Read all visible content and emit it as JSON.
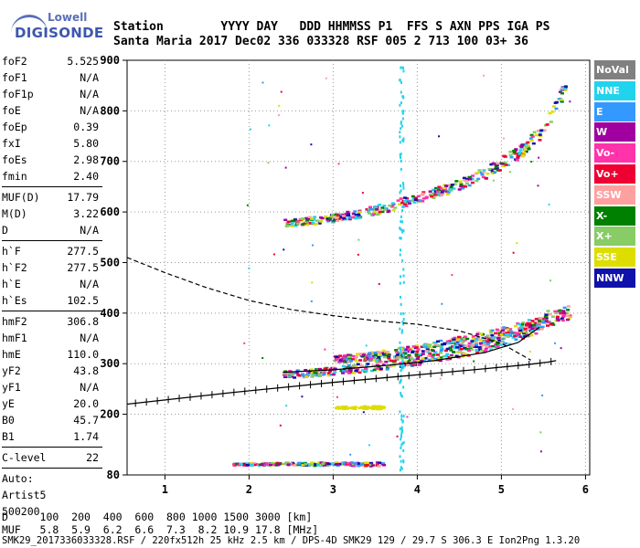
{
  "logo": {
    "brand_top": "Lowell",
    "brand_bottom": "DIGISONDE"
  },
  "header": {
    "labels_line": "Station        YYYY DAY   DDD HHMMSS P1  FFS S AXN PPS IGA PS",
    "values_line": "Santa Maria 2017 Dec02 336 033328 RSF 005 2 713 100 03+ 36"
  },
  "params": {
    "group1": [
      {
        "k": "foF2",
        "v": "5.525"
      },
      {
        "k": "foF1",
        "v": "N/A"
      },
      {
        "k": "foF1p",
        "v": "N/A"
      },
      {
        "k": "foE",
        "v": "N/A"
      },
      {
        "k": "foEp",
        "v": "0.39"
      },
      {
        "k": "fxI",
        "v": "5.80"
      },
      {
        "k": "foEs",
        "v": "2.98"
      },
      {
        "k": "fmin",
        "v": "2.40"
      }
    ],
    "group2": [
      {
        "k": "MUF(D)",
        "v": "17.79"
      },
      {
        "k": "M(D)",
        "v": "3.22"
      },
      {
        "k": "D",
        "v": "N/A"
      }
    ],
    "group3": [
      {
        "k": "h`F",
        "v": "277.5"
      },
      {
        "k": "h`F2",
        "v": "277.5"
      },
      {
        "k": "h`E",
        "v": "N/A"
      },
      {
        "k": "h`Es",
        "v": "102.5"
      }
    ],
    "group4": [
      {
        "k": "hmF2",
        "v": "306.8"
      },
      {
        "k": "hmF1",
        "v": "N/A"
      },
      {
        "k": "hmE",
        "v": "110.0"
      },
      {
        "k": "yF2",
        "v": "43.8"
      },
      {
        "k": "yF1",
        "v": "N/A"
      },
      {
        "k": "yE",
        "v": "20.0"
      },
      {
        "k": "B0",
        "v": "45.7"
      },
      {
        "k": "B1",
        "v": "1.74"
      }
    ],
    "group5": [
      {
        "k": "C-level",
        "v": "22"
      }
    ],
    "auto_lines": [
      "Auto:",
      "Artist5",
      "500200"
    ]
  },
  "legend": [
    {
      "label": "NoVal",
      "color": "#808080"
    },
    {
      "label": "NNE",
      "color": "#22d3ee"
    },
    {
      "label": "E",
      "color": "#3399ff"
    },
    {
      "label": "W",
      "color": "#a000a0"
    },
    {
      "label": "Vo-",
      "color": "#ff33aa"
    },
    {
      "label": "Vo+",
      "color": "#ee0033"
    },
    {
      "label": "SSW",
      "color": "#ffa0a0"
    },
    {
      "label": "X-",
      "color": "#008000"
    },
    {
      "label": "X+",
      "color": "#88cc66"
    },
    {
      "label": "SSE",
      "color": "#dddd00"
    },
    {
      "label": "NNW",
      "color": "#1010aa"
    }
  ],
  "footer": {
    "d_line": "D     100  200  400  600  800 1000 1500 3000 [km]",
    "muf_line": "MUF   5.8  5.9  6.2  6.6  7.3  8.2 10.9 17.8 [MHz]",
    "file_line": "SMK29_2017336033328.RSF / 220fx512h 25 kHz 2.5 km / DPS-4D SMK29 129 / 29.7 S 306.3 E Ion2Png 1.3.20"
  },
  "chart_data": {
    "type": "scatter",
    "title": "",
    "xlabel": "",
    "ylabel": "",
    "xlim": [
      0.55,
      6.05
    ],
    "ylim": [
      80,
      900
    ],
    "x_ticks": [
      1,
      2,
      3,
      4,
      5,
      6
    ],
    "y_ticks": [
      80,
      200,
      300,
      400,
      500,
      600,
      700,
      800,
      900
    ],
    "series": [
      {
        "name": "F2 O-trace",
        "color": "#a000a0",
        "x": [
          2.4,
          2.8,
          3.2,
          3.6,
          4.0,
          4.4,
          4.8,
          5.2,
          5.45,
          5.55
        ],
        "y": [
          280,
          285,
          292,
          300,
          310,
          322,
          338,
          360,
          380,
          400
        ]
      },
      {
        "name": "F2 O-trace band",
        "color": "#3399ff",
        "x": [
          3.0,
          3.5,
          4.0,
          4.5,
          5.0,
          5.5,
          5.8
        ],
        "y": [
          310,
          318,
          330,
          345,
          362,
          385,
          405
        ]
      },
      {
        "name": "Multihop 2F",
        "color": "#dddd00",
        "x": [
          2.4,
          2.8,
          3.2,
          3.6,
          4.0,
          4.4,
          4.8,
          5.2,
          5.45,
          5.6,
          5.75
        ],
        "y": [
          580,
          586,
          595,
          610,
          630,
          650,
          680,
          720,
          760,
          800,
          850
        ]
      },
      {
        "name": "Es",
        "color": "#ff33aa",
        "x": [
          1.8,
          2.1,
          2.4,
          2.7,
          3.0,
          3.3,
          3.6
        ],
        "y": [
          103,
          103,
          104,
          103,
          104,
          103,
          103
        ]
      },
      {
        "name": "Es multihop",
        "color": "#dddd00",
        "x": [
          3.0,
          3.2,
          3.4,
          3.6
        ],
        "y": [
          215,
          215,
          216,
          215
        ]
      },
      {
        "name": "Scattered echoes",
        "color": "#22d3ee",
        "x": [
          3.8,
          3.8,
          3.8,
          3.8,
          3.8,
          3.8,
          3.8,
          3.8,
          3.8
        ],
        "y": [
          250,
          300,
          350,
          400,
          450,
          500,
          600,
          700,
          800
        ]
      }
    ],
    "profile_line": {
      "x": [
        0.55,
        1.2,
        1.8,
        2.4,
        3.0,
        3.6,
        4.2,
        4.8,
        5.3,
        5.55,
        5.65
      ],
      "y": [
        220,
        232,
        243,
        253,
        263,
        272,
        281,
        290,
        298,
        303,
        306
      ]
    },
    "dashed_line": {
      "x": [
        0.55,
        1.0,
        1.5,
        2.0,
        2.5,
        3.0,
        3.5,
        4.0,
        4.5,
        5.0,
        5.35
      ],
      "y": [
        510,
        480,
        450,
        425,
        407,
        395,
        385,
        378,
        365,
        340,
        307
      ]
    },
    "f2_model_curve": {
      "x": [
        2.4,
        3.0,
        3.6,
        4.2,
        4.8,
        5.2,
        5.45
      ],
      "y": [
        283,
        288,
        296,
        306,
        322,
        342,
        372
      ]
    }
  }
}
